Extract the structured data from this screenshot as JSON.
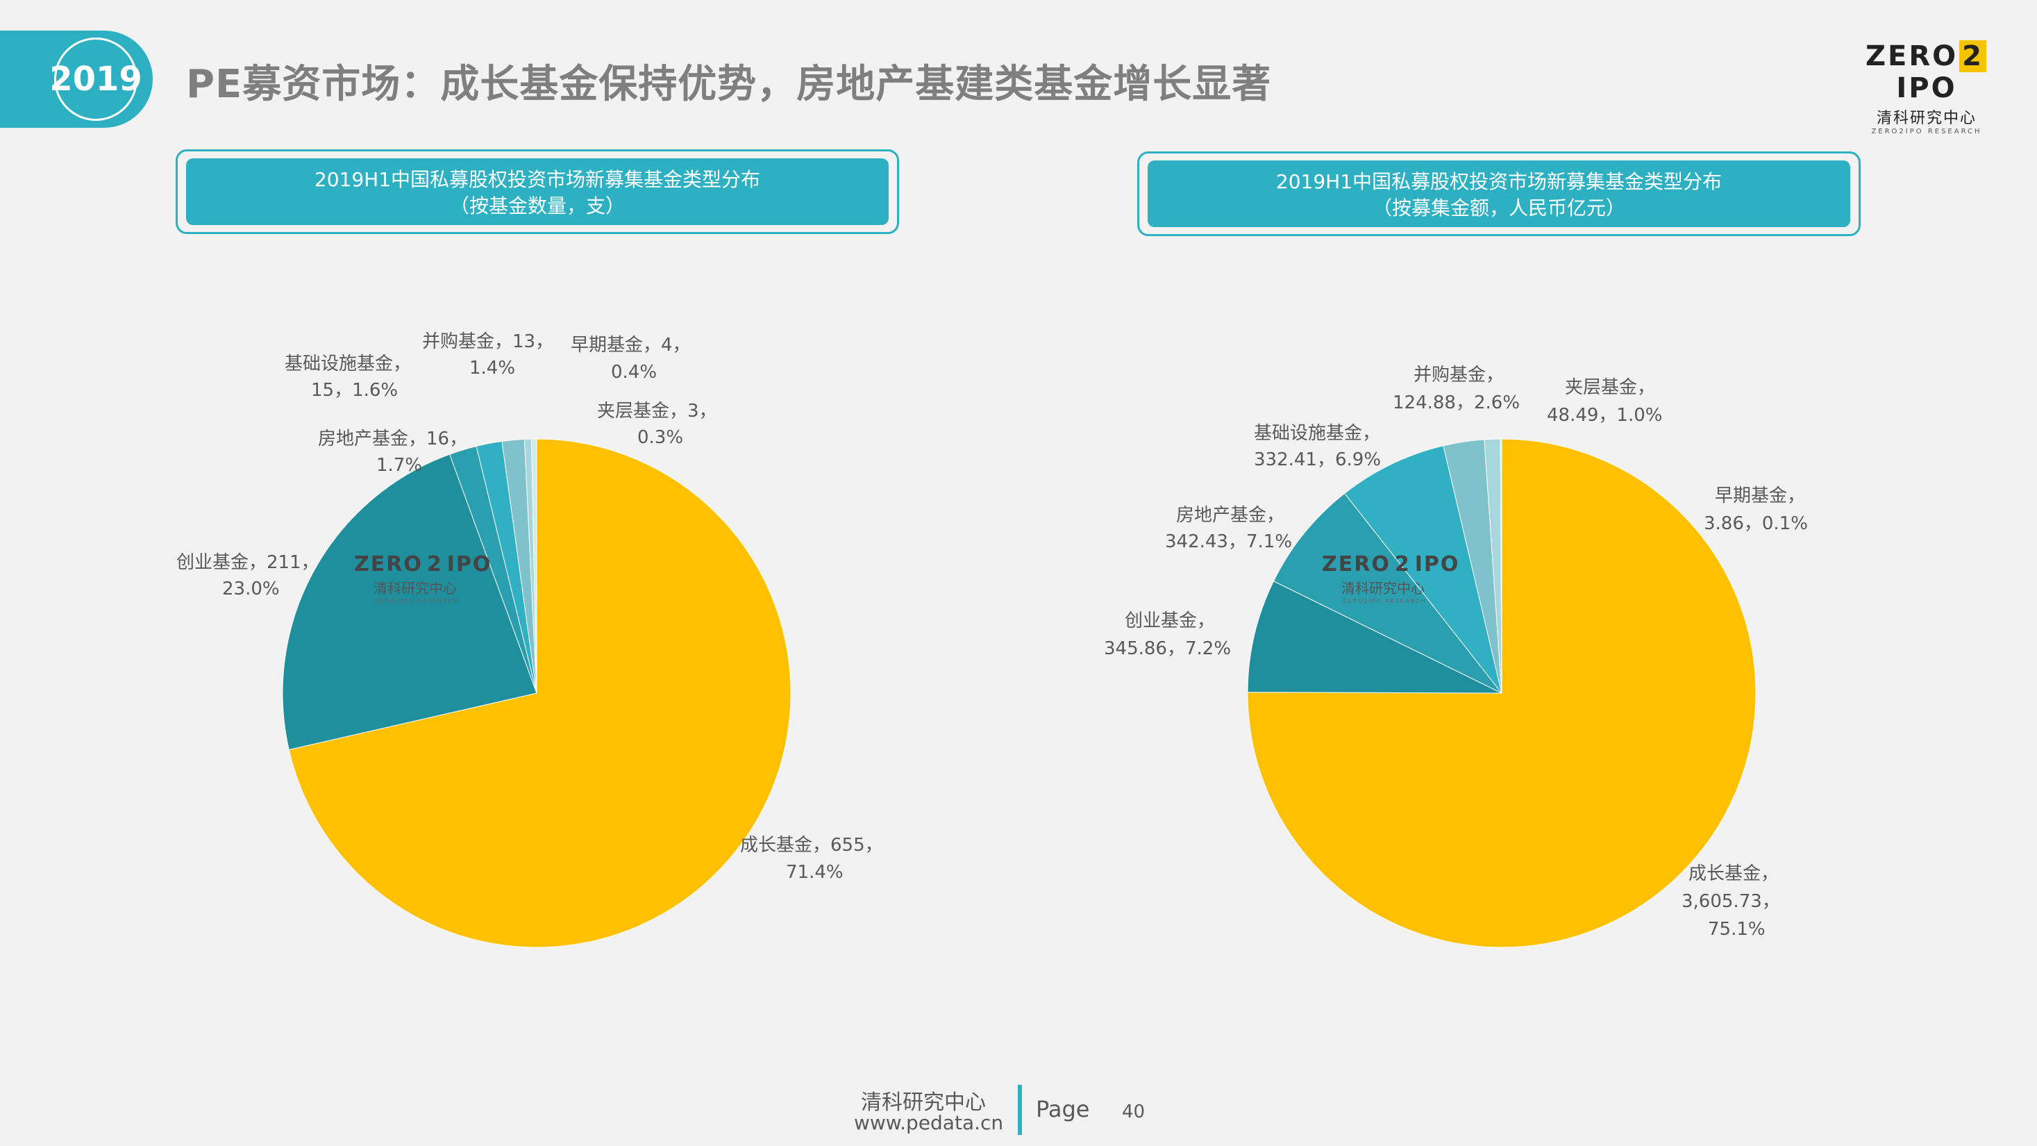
{
  "header": {
    "year": "2019",
    "title": "PE募资市场：成长基金保持优势，房地产基建类基金增长显著"
  },
  "logo": {
    "zero": "ZERO",
    "two": "2",
    "ipo": "IPO",
    "cn": "清科研究中心",
    "en": "ZERO2IPO RESEARCH"
  },
  "chart_data": [
    {
      "type": "pie",
      "title_line1": "2019H1中国私募股权投资市场新募集基金类型分布",
      "title_line2": "（按基金数量，支）",
      "slices": [
        {
          "name": "成长基金",
          "value": 655,
          "percent": 71.4,
          "label1": "成长基金，655，",
          "label2": "71.4%",
          "color": "#ffc000"
        },
        {
          "name": "创业基金",
          "value": 211,
          "percent": 23.0,
          "label1": "创业基金，211，",
          "label2": "23.0%",
          "color": "#1f8f9e"
        },
        {
          "name": "房地产基金",
          "value": 16,
          "percent": 1.7,
          "label1": "房地产基金，16，",
          "label2": "1.7%",
          "color": "#2a9fb0"
        },
        {
          "name": "基础设施基金",
          "value": 15,
          "percent": 1.6,
          "label1": "基础设施基金，",
          "label2": "15，1.6%",
          "color": "#31afc3"
        },
        {
          "name": "并购基金",
          "value": 13,
          "percent": 1.4,
          "label1": "并购基金，13，",
          "label2": "1.4%",
          "color": "#7fc2cc"
        },
        {
          "name": "早期基金",
          "value": 4,
          "percent": 0.4,
          "label1": "早期基金，4，",
          "label2": "0.4%",
          "color": "#a8d6dd"
        },
        {
          "name": "夹层基金",
          "value": 3,
          "percent": 0.3,
          "label1": "夹层基金，3，",
          "label2": "0.3%",
          "color": "#cfe9ed"
        }
      ]
    },
    {
      "type": "pie",
      "title_line1": "2019H1中国私募股权投资市场新募集基金类型分布",
      "title_line2": "（按募集金额，人民币亿元）",
      "slices": [
        {
          "name": "成长基金",
          "value": 3605.73,
          "percent": 75.1,
          "label1": "成长基金，",
          "label2": "3,605.73，",
          "label3": "75.1%",
          "color": "#ffc000"
        },
        {
          "name": "创业基金",
          "value": 345.86,
          "percent": 7.2,
          "label1": "创业基金，",
          "label2": "345.86，7.2%",
          "color": "#1f8f9e"
        },
        {
          "name": "房地产基金",
          "value": 342.43,
          "percent": 7.1,
          "label1": "房地产基金，",
          "label2": "342.43，7.1%",
          "color": "#2a9fb0"
        },
        {
          "name": "基础设施基金",
          "value": 332.41,
          "percent": 6.9,
          "label1": "基础设施基金，",
          "label2": "332.41，6.9%",
          "color": "#31afc3"
        },
        {
          "name": "并购基金",
          "value": 124.88,
          "percent": 2.6,
          "label1": "并购基金，",
          "label2": "124.88，2.6%",
          "color": "#7fc2cc"
        },
        {
          "name": "夹层基金",
          "value": 48.49,
          "percent": 1.0,
          "label1": "夹层基金，",
          "label2": "48.49，1.0%",
          "color": "#a8d6dd"
        },
        {
          "name": "早期基金",
          "value": 3.86,
          "percent": 0.1,
          "label1": "早期基金，",
          "label2": "3.86，0.1%",
          "color": "#cfe9ed"
        }
      ]
    }
  ],
  "footer": {
    "org": "清科研究中心",
    "url": "www.pedata.cn",
    "page_label": "Page",
    "page_number": "40"
  }
}
